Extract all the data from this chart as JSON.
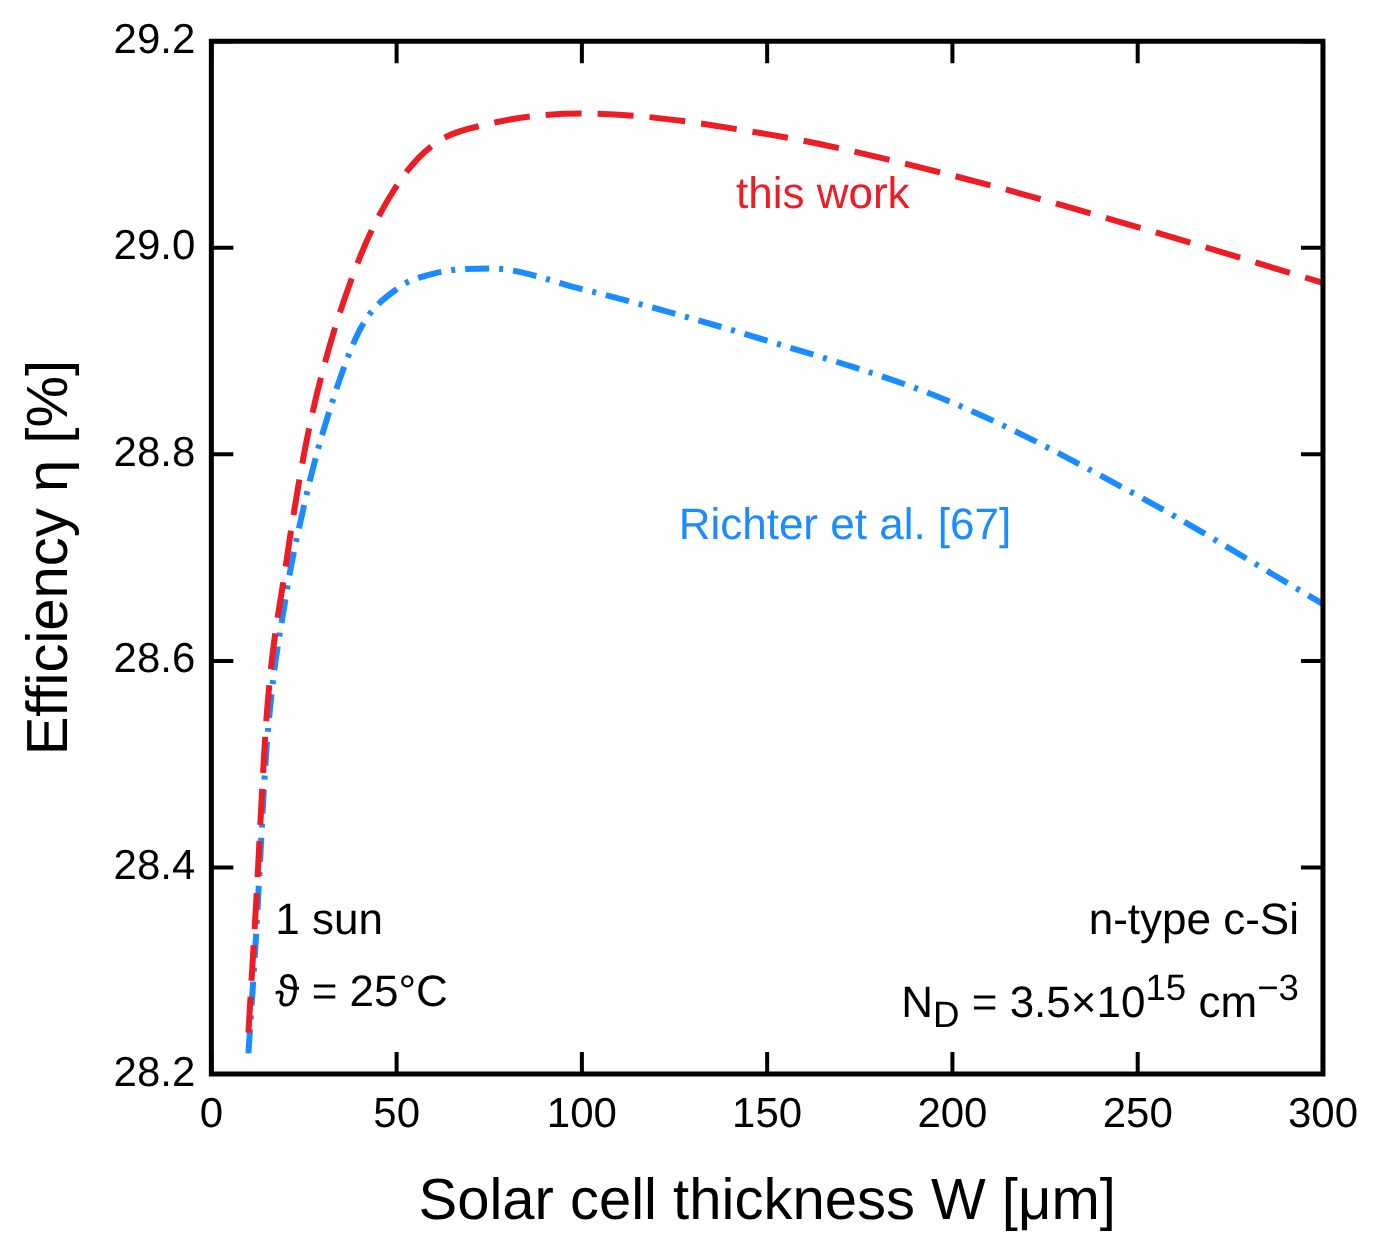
{
  "chart_data": {
    "type": "line",
    "xlabel": "Solar cell thickness W [μm]",
    "ylabel": "Efficiency η [%]",
    "xlim": [
      0,
      300
    ],
    "xticks": [
      0,
      50,
      100,
      150,
      200,
      250,
      300
    ],
    "ylim": [
      28.2,
      29.2
    ],
    "yticks": [
      {
        "value": 28.2,
        "label": "28.2"
      },
      {
        "value": 28.4,
        "label": "28.4"
      },
      {
        "value": 28.6,
        "label": "28.6"
      },
      {
        "value": 28.8,
        "label": "28.8"
      },
      {
        "value": 29.0,
        "label": "29.0"
      },
      {
        "value": 29.2,
        "label": "29.2"
      }
    ],
    "x": [
      10,
      12,
      15,
      20,
      25,
      30,
      40,
      50,
      60,
      75,
      100,
      150,
      200,
      250,
      300
    ],
    "series": [
      {
        "name": "this work",
        "color": "#ee1c25",
        "line_style": "dashed",
        "values": [
          28.24,
          28.36,
          28.55,
          28.69,
          28.8,
          28.88,
          28.99,
          29.06,
          29.1,
          29.12,
          29.13,
          29.11,
          29.07,
          29.02,
          28.966
        ]
      },
      {
        "name": "Richter et al. [67]",
        "color": "#1a8cff",
        "line_style": "dashdot",
        "values": [
          28.22,
          28.33,
          28.52,
          28.66,
          28.75,
          28.82,
          28.92,
          28.96,
          28.975,
          28.98,
          28.96,
          28.91,
          28.85,
          28.76,
          28.655
        ]
      }
    ],
    "annotations": [
      "1 sun",
      "ϑ = 25°C",
      "n-type c-Si",
      "N$_{D}$ = 3.5×10$^{15}$ cm$^{−3}$"
    ],
    "grid": false,
    "legend": false,
    "marker": "none"
  }
}
